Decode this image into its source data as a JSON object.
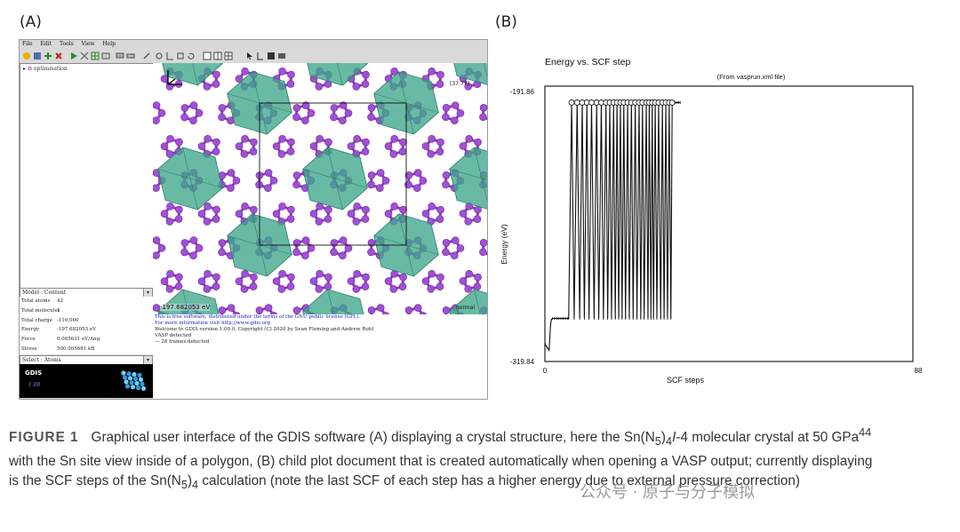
{
  "panel_a_label": "(A)",
  "panel_b_label": "(B)",
  "gdis": {
    "menu": [
      "File",
      "Edit",
      "Tools",
      "View",
      "Help"
    ],
    "tree_item": "optimisation",
    "viewport_coord": "[37.77]",
    "viewport_energy": "-197.682053 eV",
    "viewport_mode": "normal",
    "model_combo": "Model : Content",
    "properties": [
      {
        "key": "Total atoms",
        "value": "42"
      },
      {
        "key": "Total molecules",
        "value": "1"
      },
      {
        "key": "Total charge",
        "value": "-116.000"
      },
      {
        "key": "Energy",
        "value": "-197.682053 eV"
      },
      {
        "key": "Force",
        "value": "0.005631 eV/Ang"
      },
      {
        "key": "Stress",
        "value": "500.005681 kB"
      }
    ],
    "select_combo": "Select : Atoms",
    "logo_text": "GDIS",
    "logo_version": "1.00",
    "console_lines": [
      {
        "text": "This is free software, distributed under the terms of the GNU public license (GPL).",
        "color": "#1a1acc"
      },
      {
        "text": "For more information visit http://www.gdis.org",
        "color": "#1a1acc"
      },
      {
        "text": "Welcome to GDIS version 1.00.0, Copyright (C) 2020 by Sean Fleming and Andrew Rohl",
        "color": "#222222"
      },
      {
        "text": "VASP detected",
        "color": "#222222"
      },
      {
        "text": "--- 28 frames detected",
        "color": "#222222"
      }
    ]
  },
  "chart_data": {
    "type": "line",
    "title": "Energy vs. SCF step",
    "subtitle": "(From vasprun.xml file)",
    "xlabel": "SCF steps",
    "ylabel": "Energy (eV)",
    "xlim": [
      0,
      88
    ],
    "ylim": [
      -319.84,
      -191.86
    ],
    "x_tick_labels": [
      "0",
      "88"
    ],
    "y_tick_labels": [
      "-191.86",
      "-319.84"
    ],
    "grid": false,
    "top_marker_x": [
      6.3,
      7.6,
      8.8,
      9.9,
      11.0,
      12.2,
      13.3,
      14.4,
      15.3,
      16.2,
      17.0,
      17.8,
      18.6,
      19.5,
      20.4,
      21.3,
      22.2,
      23.0,
      23.9,
      24.6,
      25.3,
      26.0,
      26.8,
      27.7,
      28.5,
      29.3,
      30.0
    ],
    "series": [
      {
        "x": [
          0.1,
          0.5,
          1.0,
          1.3,
          1.5,
          1.8,
          2.3,
          2.8,
          3.3,
          3.8,
          4.3,
          4.8,
          5.3,
          5.6,
          6.3,
          6.9,
          7.6,
          8.2,
          8.8,
          9.3,
          9.9,
          10.4,
          11.0,
          11.6,
          12.2,
          12.7,
          13.3,
          13.8,
          14.4,
          14.8,
          15.3,
          15.7,
          16.2,
          16.6,
          17.0,
          17.4,
          17.8,
          18.2,
          18.6,
          19.0,
          19.5,
          19.9,
          20.4,
          20.8,
          21.3,
          21.7,
          22.2,
          22.6,
          23.0,
          23.4,
          23.9,
          24.3,
          24.6,
          25.0,
          25.3,
          25.6,
          26.0,
          26.4,
          26.8,
          27.3,
          27.7,
          28.1,
          28.5,
          28.9,
          29.3,
          29.7,
          30.0,
          30.8,
          31.2,
          31.5,
          31.9
        ],
        "y": [
          -311.9,
          -313.2,
          -314.4,
          -303.5,
          -300.3,
          -299.5,
          -299.5,
          -299.5,
          -299.5,
          -299.5,
          -299.5,
          -299.5,
          -299.5,
          -299.5,
          -197.5,
          -299.5,
          -197.5,
          -299.5,
          -197.5,
          -299.5,
          -197.5,
          -299.5,
          -197.5,
          -299.5,
          -197.5,
          -299.5,
          -197.5,
          -299.5,
          -197.5,
          -299.5,
          -197.5,
          -299.5,
          -197.5,
          -299.5,
          -197.5,
          -299.5,
          -197.5,
          -299.5,
          -197.5,
          -299.5,
          -197.5,
          -299.5,
          -197.5,
          -299.5,
          -197.5,
          -299.5,
          -197.5,
          -299.5,
          -197.5,
          -299.5,
          -197.5,
          -299.5,
          -197.5,
          -299.5,
          -197.5,
          -299.5,
          -197.5,
          -299.5,
          -197.5,
          -299.5,
          -197.5,
          -299.5,
          -197.5,
          -299.5,
          -197.5,
          -299.5,
          -197.5,
          -197.5,
          -197.5,
          -197.5,
          -197.5
        ]
      }
    ]
  },
  "caption": {
    "figure_label": "FIGURE 1",
    "line1_a": "Graphical user interface of the GDIS software (A) displaying a crystal structure, here the Sn(N",
    "line1_sub1": "5",
    "line1_b": ")",
    "line1_sub2": "4",
    "line1_c": "I",
    "line1_d": "-4 molecular crystal at 50 GPa",
    "line1_sup": "44",
    "line2": "with the Sn site view inside of a polygon, (B) child plot document that is created automatically when opening a VASP output; currently displaying",
    "line3_a": "is the SCF steps of the Sn(N",
    "line3_sub1": "5",
    "line3_b": ")",
    "line3_sub2": "4",
    "line3_c": " calculation (note the last SCF of each step has a higher energy due to external pressure correction)"
  },
  "watermark": "公众号 · 原子与分子模拟"
}
